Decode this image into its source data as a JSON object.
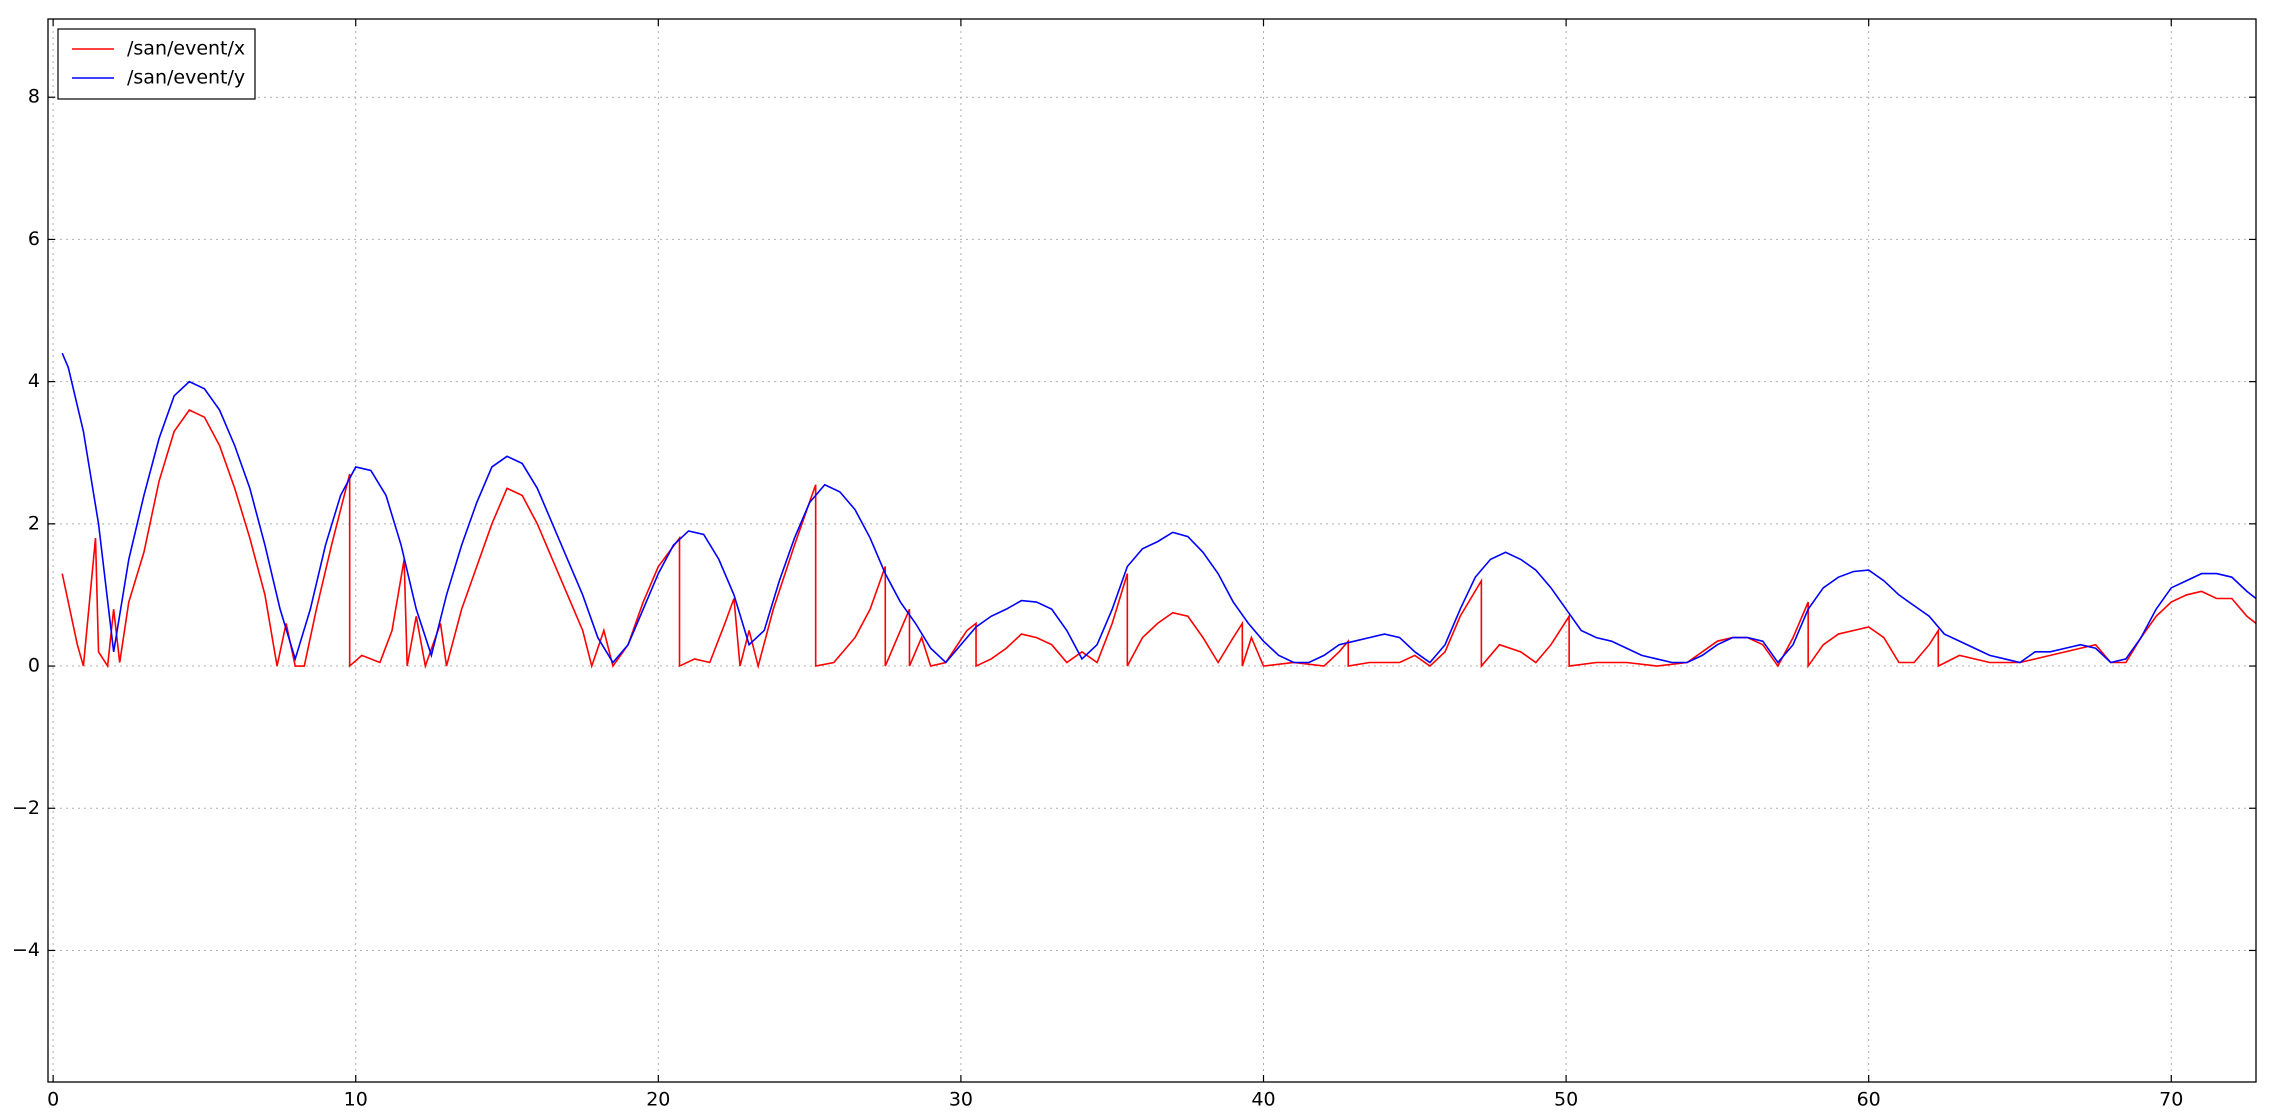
{
  "chart_data": {
    "type": "line",
    "xlim": [
      -0.17,
      72.8
    ],
    "ylim": [
      -5.85,
      9.1
    ],
    "xticks": [
      0,
      10,
      20,
      30,
      40,
      50,
      60,
      70
    ],
    "yticks": [
      {
        "value": -4,
        "label": "−4"
      },
      {
        "value": -2,
        "label": "−2"
      },
      0,
      2,
      4,
      6,
      8
    ],
    "grid": true,
    "legend": "upper left",
    "series": [
      {
        "name": "/san/event/x",
        "color": "#ff0000",
        "x": [
          0.3,
          0.5,
          0.8,
          1.0,
          1.4,
          1.5,
          1.8,
          2.0,
          2.2,
          2.5,
          3,
          3.5,
          4,
          4.5,
          5,
          5.5,
          6,
          6.5,
          7,
          7.4,
          7.7,
          8,
          8.3,
          8.7,
          9.2,
          9.8,
          9.8,
          10.2,
          10.8,
          11.2,
          11.6,
          11.7,
          12.0,
          12.3,
          12.8,
          13.0,
          13.5,
          14,
          14.5,
          15,
          15.5,
          16,
          16.5,
          17,
          17.5,
          17.8,
          18.2,
          18.5,
          19,
          19.5,
          20,
          20.7,
          20.7,
          21.2,
          21.7,
          22.2,
          22.5,
          22.7,
          23,
          23.3,
          23.8,
          24.5,
          25.2,
          25.2,
          25.8,
          26.5,
          27,
          27.5,
          27.5,
          28.3,
          28.3,
          28.7,
          29,
          29.5,
          30.2,
          30.5,
          30.5,
          31,
          31.5,
          32,
          32.5,
          33,
          33.5,
          34,
          34.5,
          35,
          35.5,
          35.5,
          36,
          36.5,
          37,
          37.5,
          38,
          38.5,
          39,
          39.3,
          39.3,
          39.6,
          40,
          41,
          42,
          42.5,
          42.8,
          42.8,
          43.5,
          44.5,
          45,
          45.5,
          46,
          46.5,
          47.2,
          47.2,
          47.8,
          48.5,
          49,
          49.5,
          50.1,
          50.1,
          51,
          52,
          53,
          54,
          55,
          55.5,
          56,
          56.5,
          57,
          57.5,
          58,
          58,
          58.5,
          59,
          59.5,
          60,
          60.5,
          61,
          61.5,
          62,
          62.3,
          62.3,
          63,
          64,
          65,
          66,
          67,
          67.5,
          68,
          68.5,
          69,
          69.5,
          70,
          70.5,
          71,
          71.5,
          72,
          72.5,
          72.8
        ],
        "values": [
          1.3,
          0.9,
          0.3,
          0,
          1.8,
          0.2,
          0,
          0.8,
          0.05,
          0.9,
          1.6,
          2.6,
          3.3,
          3.6,
          3.5,
          3.1,
          2.5,
          1.8,
          1.0,
          0,
          0.6,
          0,
          0,
          0.8,
          1.7,
          2.7,
          0,
          0.15,
          0.05,
          0.5,
          1.5,
          0,
          0.7,
          0,
          0.6,
          0,
          0.8,
          1.4,
          2.0,
          2.5,
          2.4,
          2.0,
          1.5,
          1.0,
          0.5,
          0,
          0.5,
          0,
          0.3,
          0.9,
          1.4,
          1.8,
          0,
          0.1,
          0.05,
          0.6,
          0.95,
          0,
          0.5,
          0,
          0.8,
          1.7,
          2.55,
          0,
          0.05,
          0.4,
          0.8,
          1.4,
          0,
          0.8,
          0,
          0.4,
          0,
          0.05,
          0.5,
          0.6,
          0,
          0.1,
          0.25,
          0.45,
          0.4,
          0.3,
          0.05,
          0.2,
          0.05,
          0.6,
          1.3,
          0,
          0.4,
          0.6,
          0.75,
          0.7,
          0.4,
          0.05,
          0.4,
          0.6,
          0,
          0.4,
          0,
          0.05,
          0,
          0.2,
          0.35,
          0,
          0.05,
          0.05,
          0.15,
          0,
          0.2,
          0.7,
          1.2,
          0,
          0.3,
          0.2,
          0.05,
          0.3,
          0.7,
          0,
          0.05,
          0.05,
          0,
          0.05,
          0.35,
          0.4,
          0.4,
          0.3,
          0,
          0.4,
          0.9,
          0,
          0.3,
          0.45,
          0.5,
          0.55,
          0.4,
          0.05,
          0.05,
          0.3,
          0.5,
          0,
          0.15,
          0.05,
          0.05,
          0.15,
          0.25,
          0.3,
          0.05,
          0.05,
          0.4,
          0.7,
          0.9,
          1.0,
          1.05,
          0.95,
          0.95,
          0.7,
          0.6
        ]
      },
      {
        "name": "/san/event/y",
        "color": "#0000ff",
        "x": [
          0.3,
          0.5,
          1,
          1.5,
          2,
          2.5,
          3,
          3.5,
          4,
          4.5,
          5,
          5.5,
          6,
          6.5,
          7,
          7.5,
          8,
          8.5,
          9,
          9.5,
          10,
          10.5,
          11,
          11.5,
          12,
          12.5,
          13,
          13.5,
          14,
          14.5,
          15,
          15.5,
          16,
          16.5,
          17,
          17.5,
          18,
          18.5,
          19,
          19.5,
          20,
          20.5,
          21,
          21.5,
          22,
          22.5,
          23,
          23.5,
          24,
          24.5,
          25,
          25.5,
          26,
          26.5,
          27,
          27.5,
          28,
          28.5,
          29,
          29.5,
          30,
          30.5,
          31,
          31.5,
          32,
          32.5,
          33,
          33.5,
          34,
          34.5,
          35,
          35.5,
          36,
          36.5,
          37,
          37.5,
          38,
          38.5,
          39,
          39.5,
          40,
          40.5,
          41,
          41.5,
          42,
          42.5,
          43,
          43.5,
          44,
          44.5,
          45,
          45.5,
          46,
          46.5,
          47,
          47.5,
          48,
          48.5,
          49,
          49.5,
          50,
          50.5,
          51,
          51.5,
          52,
          52.5,
          53,
          53.5,
          54,
          54.5,
          55,
          55.5,
          56,
          56.5,
          57,
          57.5,
          58,
          58.5,
          59,
          59.5,
          60,
          60.5,
          61,
          61.5,
          62,
          62.5,
          63,
          63.5,
          64,
          64.5,
          65,
          65.5,
          66,
          66.5,
          67,
          67.5,
          68,
          68.5,
          69,
          69.5,
          70,
          70.5,
          71,
          71.5,
          72,
          72.5,
          72.8
        ],
        "values": [
          4.4,
          4.2,
          3.3,
          2.0,
          0.2,
          1.5,
          2.4,
          3.2,
          3.8,
          4.0,
          3.9,
          3.6,
          3.1,
          2.5,
          1.7,
          0.8,
          0.1,
          0.8,
          1.7,
          2.4,
          2.8,
          2.75,
          2.4,
          1.7,
          0.8,
          0.15,
          1.0,
          1.7,
          2.3,
          2.8,
          2.95,
          2.85,
          2.5,
          2.0,
          1.5,
          1.0,
          0.4,
          0.05,
          0.3,
          0.8,
          1.3,
          1.7,
          1.9,
          1.85,
          1.5,
          1.0,
          0.3,
          0.5,
          1.2,
          1.8,
          2.3,
          2.55,
          2.45,
          2.2,
          1.8,
          1.3,
          0.9,
          0.6,
          0.25,
          0.05,
          0.3,
          0.55,
          0.7,
          0.8,
          0.92,
          0.9,
          0.8,
          0.5,
          0.1,
          0.3,
          0.8,
          1.4,
          1.65,
          1.75,
          1.88,
          1.82,
          1.6,
          1.3,
          0.9,
          0.6,
          0.35,
          0.15,
          0.05,
          0.05,
          0.15,
          0.3,
          0.35,
          0.4,
          0.45,
          0.4,
          0.2,
          0.05,
          0.3,
          0.8,
          1.25,
          1.5,
          1.6,
          1.5,
          1.35,
          1.1,
          0.8,
          0.5,
          0.4,
          0.35,
          0.25,
          0.15,
          0.1,
          0.05,
          0.05,
          0.15,
          0.3,
          0.4,
          0.4,
          0.35,
          0.05,
          0.3,
          0.8,
          1.1,
          1.25,
          1.33,
          1.35,
          1.2,
          1.0,
          0.85,
          0.7,
          0.45,
          0.35,
          0.25,
          0.15,
          0.1,
          0.05,
          0.2,
          0.2,
          0.25,
          0.3,
          0.25,
          0.05,
          0.1,
          0.4,
          0.8,
          1.1,
          1.2,
          1.3,
          1.3,
          1.25,
          1.05,
          0.95
        ]
      }
    ]
  }
}
